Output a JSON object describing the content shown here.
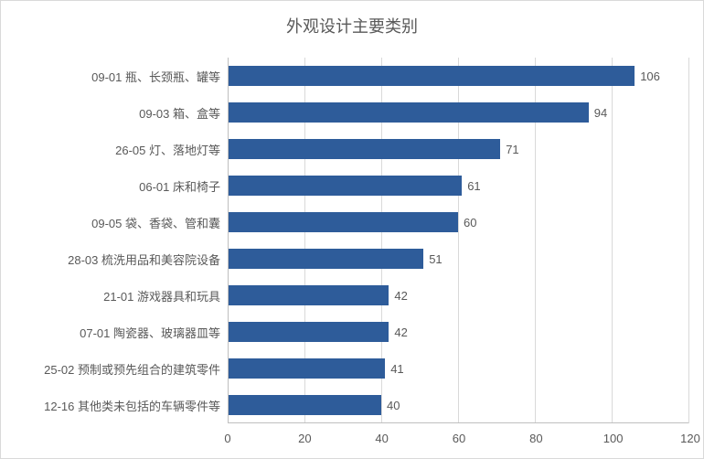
{
  "chart": {
    "type": "bar-horizontal",
    "title": "外观设计主要类别",
    "title_fontsize": 18,
    "title_color": "#595959",
    "background_color": "#ffffff",
    "border_color": "#d9d9d9",
    "label_fontsize": 13,
    "label_color": "#595959",
    "bar_color": "#2e5c9a",
    "grid_color": "#d9d9d9",
    "axis_color": "#bfbfbf",
    "xlim": [
      0,
      120
    ],
    "xtick_step": 20,
    "xticks": [
      0,
      20,
      40,
      60,
      80,
      100,
      120
    ],
    "y_label_width": 232,
    "bar_height_ratio": 0.55,
    "categories": [
      "09-01 瓶、长颈瓶、罐等",
      "09-03 箱、盒等",
      "26-05 灯、落地灯等",
      "06-01 床和椅子",
      "09-05 袋、香袋、管和囊",
      "28-03 梳洗用品和美容院设备",
      "21-01 游戏器具和玩具",
      "07-01 陶瓷器、玻璃器皿等",
      "25-02 预制或预先组合的建筑零件",
      "12-16 其他类未包括的车辆零件等"
    ],
    "values": [
      106,
      94,
      71,
      61,
      60,
      51,
      42,
      42,
      41,
      40
    ]
  }
}
